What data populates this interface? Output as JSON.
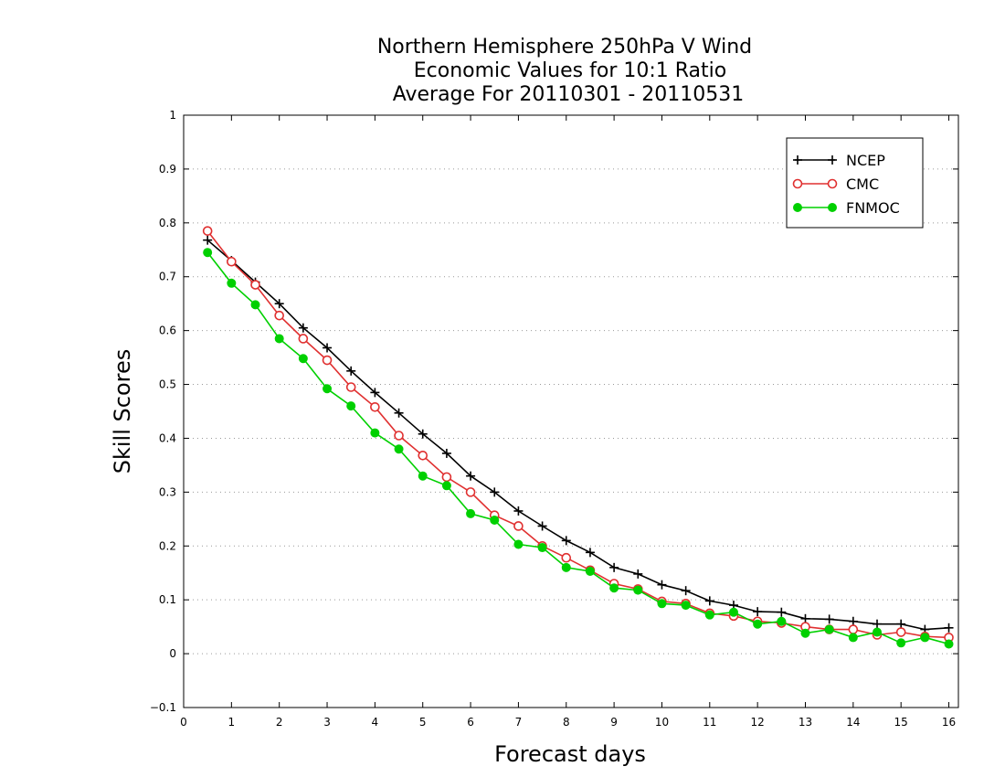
{
  "chart_data": {
    "type": "line",
    "title": [
      "Northern Hemisphere 250hPa V Wind",
      "Economic Values for 10:1 Ratio",
      "Average For 20110301 - 20110531"
    ],
    "xlabel": "Forecast days",
    "ylabel": "Skill Scores",
    "xlim": [
      0,
      16.2
    ],
    "ylim": [
      -0.1,
      1
    ],
    "xticks": [
      0,
      1,
      2,
      3,
      4,
      5,
      6,
      7,
      8,
      9,
      10,
      11,
      12,
      13,
      14,
      15,
      16
    ],
    "xtick_labels": [
      "0",
      "1",
      "2",
      "3",
      "4",
      "5",
      "6",
      "7",
      "8",
      "9",
      "10",
      "11",
      "12",
      "13",
      "14",
      "15",
      "16"
    ],
    "yticks": [
      -0.1,
      0,
      0.1,
      0.2,
      0.3,
      0.4,
      0.5,
      0.6,
      0.7,
      0.8,
      0.9,
      1
    ],
    "ytick_labels": [
      "−0.1",
      "0",
      "0.1",
      "0.2",
      "0.3",
      "0.4",
      "0.5",
      "0.6",
      "0.7",
      "0.8",
      "0.9",
      "1"
    ],
    "grid": "horizontal dotted",
    "legend_position": "top-right",
    "x": [
      0.5,
      1,
      1.5,
      2,
      2.5,
      3,
      3.5,
      4,
      4.5,
      5,
      5.5,
      6,
      6.5,
      7,
      7.5,
      8,
      8.5,
      9,
      9.5,
      10,
      10.5,
      11,
      11.5,
      12,
      12.5,
      13,
      13.5,
      14,
      14.5,
      15,
      15.5,
      16
    ],
    "series": [
      {
        "name": "NCEP",
        "color": "#000000",
        "marker": "plus",
        "values": [
          0.768,
          0.73,
          0.69,
          0.65,
          0.605,
          0.568,
          0.525,
          0.485,
          0.447,
          0.408,
          0.372,
          0.33,
          0.3,
          0.265,
          0.237,
          0.21,
          0.188,
          0.16,
          0.148,
          0.128,
          0.117,
          0.098,
          0.09,
          0.078,
          0.077,
          0.065,
          0.064,
          0.06,
          0.055,
          0.055,
          0.045,
          0.048
        ]
      },
      {
        "name": "CMC",
        "color": "#e03030",
        "marker": "open-circle",
        "values": [
          0.785,
          0.728,
          0.685,
          0.628,
          0.585,
          0.545,
          0.495,
          0.458,
          0.405,
          0.368,
          0.328,
          0.3,
          0.257,
          0.237,
          0.2,
          0.178,
          0.155,
          0.13,
          0.12,
          0.097,
          0.093,
          0.075,
          0.07,
          0.06,
          0.057,
          0.05,
          0.045,
          0.045,
          0.035,
          0.04,
          0.032,
          0.03
        ]
      },
      {
        "name": "FNMOC",
        "color": "#00d000",
        "marker": "filled-circle",
        "values": [
          0.745,
          0.688,
          0.648,
          0.585,
          0.548,
          0.492,
          0.46,
          0.41,
          0.38,
          0.33,
          0.312,
          0.26,
          0.248,
          0.203,
          0.197,
          0.16,
          0.153,
          0.122,
          0.118,
          0.093,
          0.09,
          0.072,
          0.077,
          0.055,
          0.06,
          0.038,
          0.045,
          0.03,
          0.04,
          0.02,
          0.03,
          0.018
        ]
      }
    ]
  }
}
